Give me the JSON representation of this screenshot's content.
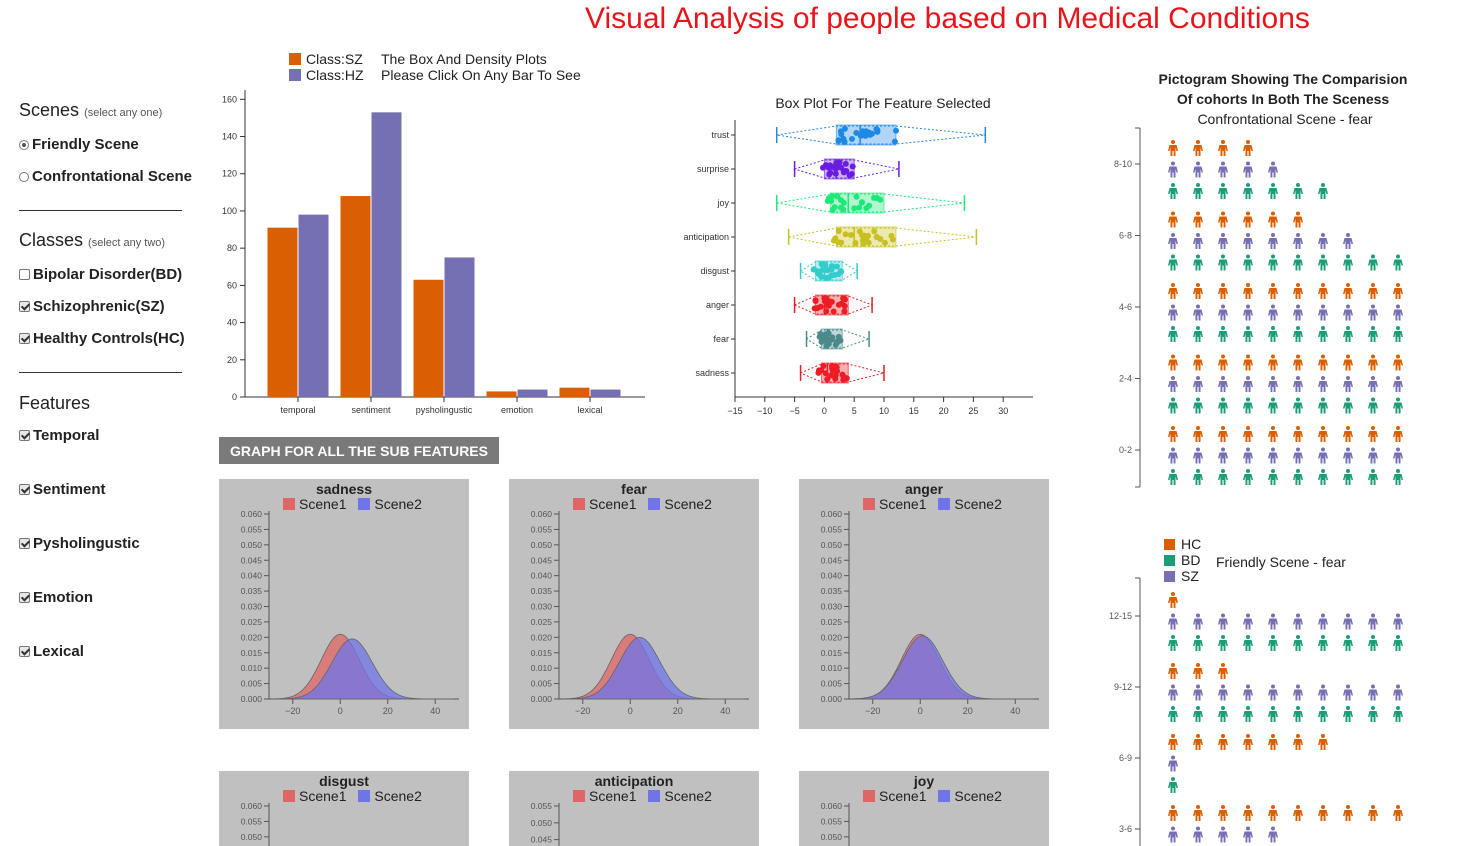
{
  "title": "Visual Analysis of people based on Medical Conditions",
  "colors": {
    "sz": "#d95f02",
    "hz": "#7570b3",
    "hc": "#d95f02",
    "bd": "#1b9e77",
    "scene1": "#e06666",
    "scene2": "#6f75e8"
  },
  "sidebar": {
    "scenes": {
      "heading": "Scenes",
      "hint": "(select any one)",
      "options": [
        {
          "label": "Friendly Scene",
          "checked": true
        },
        {
          "label": "Confrontational Scene",
          "checked": false
        }
      ]
    },
    "classes": {
      "heading": "Classes",
      "hint": "(select any two)",
      "options": [
        {
          "label": "Bipolar Disorder(BD)",
          "checked": false
        },
        {
          "label": "Schizophrenic(SZ)",
          "checked": true
        },
        {
          "label": "Healthy Controls(HC)",
          "checked": true
        }
      ]
    },
    "features": {
      "heading": "Features",
      "options": [
        {
          "label": "Temporal",
          "checked": true
        },
        {
          "label": "Sentiment",
          "checked": true
        },
        {
          "label": "Pysholingustic",
          "checked": true
        },
        {
          "label": "Emotion",
          "checked": true
        },
        {
          "label": "Lexical",
          "checked": true
        }
      ]
    }
  },
  "bar_legend": {
    "sz": "Class:SZ",
    "hz": "Class:HZ",
    "note1": "The Box And Density Plots",
    "note2": "Please Click On Any Bar To See"
  },
  "subfeatures_button": "GRAPH FOR ALL THE SUB FEATURES",
  "density_legend": {
    "s1": "Scene1",
    "s2": "Scene2"
  },
  "chart_data": [
    {
      "type": "bar",
      "categories": [
        "temporal",
        "sentiment",
        "pysholingustic",
        "emotion",
        "lexical"
      ],
      "series": [
        {
          "name": "Class:SZ",
          "values": [
            91,
            108,
            63,
            3,
            5
          ]
        },
        {
          "name": "Class:HZ",
          "values": [
            98,
            153,
            75,
            4,
            4
          ]
        }
      ],
      "ylim": [
        0,
        165
      ],
      "yticks": [
        "0",
        "20",
        "40",
        "60",
        "80",
        "100",
        "120",
        "140",
        "160"
      ]
    },
    {
      "type": "box",
      "title": "Box Plot For  The Feature Selected",
      "xlim": [
        -15,
        35
      ],
      "xticks": [
        "−15",
        "−10",
        "−5",
        "0",
        "5",
        "10",
        "15",
        "20",
        "25",
        "30"
      ],
      "rows": [
        {
          "label": "trust",
          "min": -8,
          "q1": 2,
          "median": 6,
          "q3": 12,
          "max": 27,
          "color": "#1e88e5"
        },
        {
          "label": "surprise",
          "min": -5,
          "q1": 0,
          "median": 2,
          "q3": 5,
          "max": 12.5,
          "color": "#6a1de0"
        },
        {
          "label": "joy",
          "min": -8,
          "q1": 1,
          "median": 4,
          "q3": 10,
          "max": 23.5,
          "color": "#1ee878"
        },
        {
          "label": "anticipation",
          "min": -6,
          "q1": 2,
          "median": 5,
          "q3": 12,
          "max": 25.5,
          "color": "#c8c01e"
        },
        {
          "label": "disgust",
          "min": -4,
          "q1": -1.5,
          "median": 0,
          "q3": 3,
          "max": 5.5,
          "color": "#33cccc"
        },
        {
          "label": "anger",
          "min": -5,
          "q1": -1.5,
          "median": 0,
          "q3": 4,
          "max": 8,
          "color": "#ee1c24"
        },
        {
          "label": "fear",
          "min": -3,
          "q1": -0.5,
          "median": 0.5,
          "q3": 3,
          "max": 7.5,
          "color": "#4a8a8a"
        },
        {
          "label": "sadness",
          "min": -4,
          "q1": -0.5,
          "median": 0.5,
          "q3": 4,
          "max": 10,
          "color": "#ee1c24"
        }
      ]
    },
    {
      "type": "area",
      "title": "sadness",
      "ylim": [
        0,
        0.06
      ],
      "xlim": [
        -30,
        50
      ],
      "yticks": [
        "0.000",
        "0.005",
        "0.010",
        "0.015",
        "0.020",
        "0.025",
        "0.030",
        "0.035",
        "0.040",
        "0.045",
        "0.050",
        "0.055",
        "0.060"
      ],
      "xticks": [
        "−20",
        "0",
        "20",
        "40"
      ],
      "series": [
        {
          "name": "Scene1",
          "mean": 0,
          "sd": 8,
          "peak": 0.021
        },
        {
          "name": "Scene2",
          "mean": 5,
          "sd": 8.5,
          "peak": 0.0195
        }
      ]
    },
    {
      "type": "area",
      "title": "fear",
      "ylim": [
        0,
        0.06
      ],
      "xlim": [
        -30,
        50
      ],
      "yticks": [
        "0.000",
        "0.005",
        "0.010",
        "0.015",
        "0.020",
        "0.025",
        "0.030",
        "0.035",
        "0.040",
        "0.045",
        "0.050",
        "0.055",
        "0.060"
      ],
      "xticks": [
        "−20",
        "0",
        "20",
        "40"
      ],
      "series": [
        {
          "name": "Scene1",
          "mean": 0,
          "sd": 8,
          "peak": 0.021
        },
        {
          "name": "Scene2",
          "mean": 4,
          "sd": 8.5,
          "peak": 0.02
        }
      ]
    },
    {
      "type": "area",
      "title": "anger",
      "ylim": [
        0,
        0.06
      ],
      "xlim": [
        -30,
        50
      ],
      "yticks": [
        "0.000",
        "0.005",
        "0.010",
        "0.015",
        "0.020",
        "0.025",
        "0.030",
        "0.035",
        "0.040",
        "0.045",
        "0.050",
        "0.055",
        "0.060"
      ],
      "xticks": [
        "−20",
        "0",
        "20",
        "40"
      ],
      "series": [
        {
          "name": "Scene1",
          "mean": 0,
          "sd": 8,
          "peak": 0.021
        },
        {
          "name": "Scene2",
          "mean": 1,
          "sd": 8.5,
          "peak": 0.0205
        }
      ]
    },
    {
      "type": "area",
      "title": "disgust",
      "ylim": [
        0,
        0.06
      ],
      "yticks": [
        "0.050",
        "0.055",
        "0.060"
      ]
    },
    {
      "type": "area",
      "title": "anticipation",
      "ylim": [
        0,
        0.055
      ],
      "yticks": [
        "0.045",
        "0.050",
        "0.055"
      ]
    },
    {
      "type": "area",
      "title": "joy",
      "ylim": [
        0,
        0.06
      ],
      "yticks": [
        "0.050",
        "0.055",
        "0.060"
      ]
    },
    {
      "type": "pictogram",
      "title_line1": "Pictogram Showing The Comparision",
      "title_line2": "Of cohorts In Both The Sceness",
      "subtitle": "Confrontational Scene - fear",
      "groups": [
        {
          "label": "8-10",
          "hc": 4,
          "sz": 5,
          "bd": 7
        },
        {
          "label": "6-8",
          "hc": 6,
          "sz": 8,
          "bd": 10
        },
        {
          "label": "4-6",
          "hc": 10,
          "sz": 10,
          "bd": 10
        },
        {
          "label": "2-4",
          "hc": 10,
          "sz": 10,
          "bd": 10
        },
        {
          "label": "0-2",
          "hc": 10,
          "sz": 10,
          "bd": 10
        }
      ]
    },
    {
      "type": "pictogram",
      "subtitle": "Friendly Scene - fear",
      "legend": [
        "HC",
        "BD",
        "SZ"
      ],
      "groups": [
        {
          "label": "12-15",
          "hc": 1,
          "sz": 10,
          "bd": 10
        },
        {
          "label": "9-12",
          "hc": 3,
          "sz": 10,
          "bd": 10
        },
        {
          "label": "6-9",
          "hc": 7,
          "sz": 1,
          "bd": 1
        },
        {
          "label": "3-6",
          "hc": 10,
          "sz": 5,
          "bd": 0
        }
      ]
    }
  ]
}
